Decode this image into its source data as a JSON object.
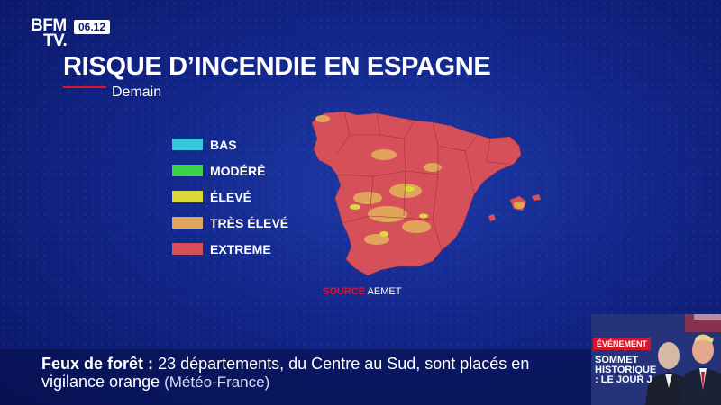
{
  "channel": {
    "logo_line1": "BFM",
    "logo_line2": "TV.",
    "time": "06.12"
  },
  "map": {
    "title": "RISQUE D’INCENDIE EN ESPAGNE",
    "subtitle": "Demain",
    "legend": [
      {
        "label": "BAS",
        "color": "#37c6e0"
      },
      {
        "label": "MODÉRÉ",
        "color": "#3ed24a"
      },
      {
        "label": "ÉLEVÉ",
        "color": "#d9db3c"
      },
      {
        "label": "TRÈS ÉLEVÉ",
        "color": "#e0a45a"
      },
      {
        "label": "EXTREME",
        "color": "#d6505a"
      }
    ],
    "source_label": "SOURCE",
    "source_value": "AEMET"
  },
  "ticker": {
    "keyword": "Feux de forêt",
    "separator": ":",
    "line1_text": "23 départements, du Centre au Sud, sont placés en",
    "line2_text": "vigilance orange",
    "line2_source": "(Météo-France)"
  },
  "event": {
    "tag": "ÉVÉNEMENT",
    "title": "SOMMET HISTORIQUE : LE JOUR J"
  }
}
